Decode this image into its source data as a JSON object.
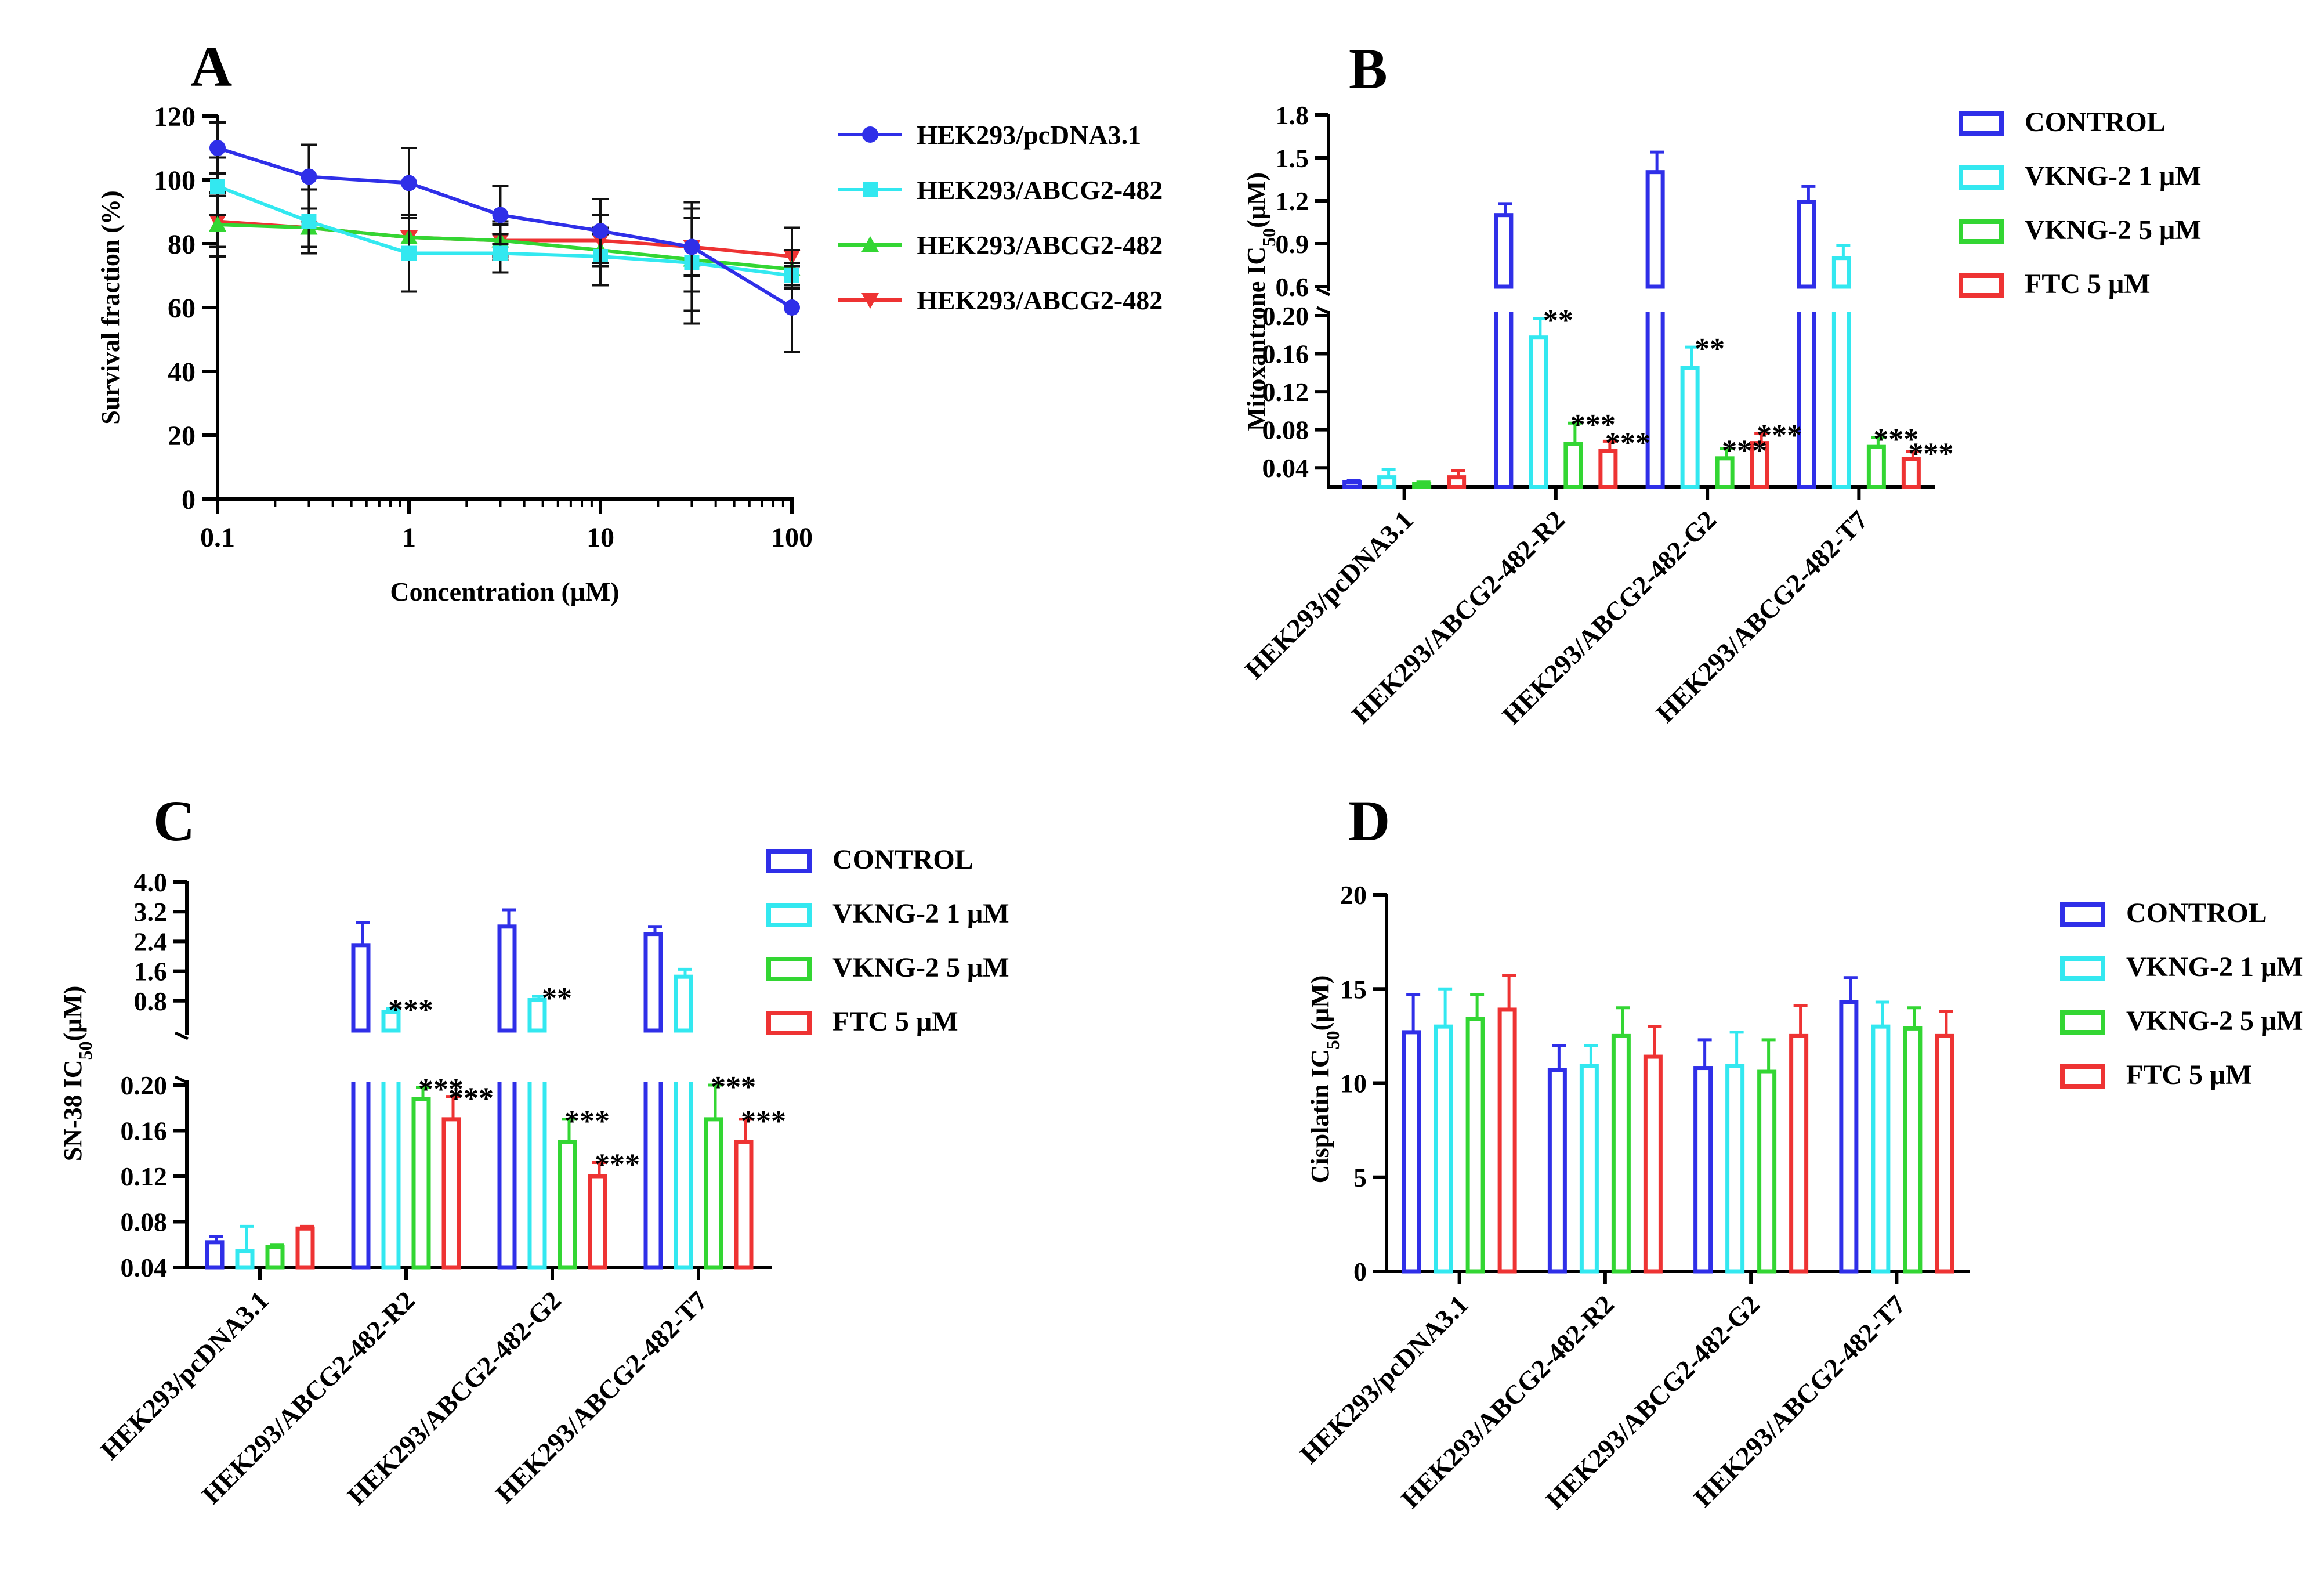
{
  "colors": {
    "control": "#2f2fe8",
    "vkng1": "#33e8f0",
    "vkng5": "#33d633",
    "ftc": "#ee3333",
    "pcdna": "#2f2fe8",
    "r2": "#33e8f0",
    "g2": "#33d633",
    "t7": "#ee3333"
  },
  "bar_legend": [
    "CONTROL",
    "VKNG-2 1 μM",
    "VKNG-2 5 μM",
    "FTC 5 μM"
  ],
  "chart_data": [
    {
      "panel": "A",
      "type": "line",
      "xlabel": "Concentration (μM)",
      "ylabel": "Survival fraction (%)",
      "xscale": "log",
      "xlim": [
        0.1,
        100
      ],
      "ylim": [
        0,
        120
      ],
      "xticks": [
        "0.1",
        "1",
        "10",
        "100"
      ],
      "yticks": [
        "0",
        "20",
        "40",
        "60",
        "80",
        "100",
        "120"
      ],
      "legend_position": "right",
      "x": [
        0.1,
        0.3,
        1,
        3,
        10,
        30,
        100
      ],
      "series": [
        {
          "name": "HEK293/pcDNA3.1",
          "marker": "circle",
          "values": [
            110,
            101,
            99,
            89,
            84,
            79,
            60
          ],
          "errors": [
            8,
            10,
            11,
            9,
            10,
            14,
            14
          ]
        },
        {
          "name": "HEK293/ABCG2-482",
          "marker": "square",
          "values": [
            98,
            87,
            77,
            77,
            76,
            74,
            70
          ],
          "errors": [
            9,
            10,
            12,
            6,
            9,
            19,
            3
          ]
        },
        {
          "name": "HEK293/ABCG2-482",
          "marker": "triangle-up",
          "values": [
            86,
            85,
            82,
            81,
            78,
            75,
            72
          ],
          "errors": [
            10,
            6,
            7,
            5,
            5,
            16,
            6
          ]
        },
        {
          "name": "HEK293/ABCG2-482",
          "marker": "triangle-down",
          "values": [
            87,
            85,
            82,
            81,
            81,
            79,
            76
          ],
          "errors": [
            8,
            6,
            7,
            6,
            8,
            9,
            9
          ]
        }
      ]
    },
    {
      "panel": "B",
      "type": "bar",
      "ylabel_main": "Mitoxantrone IC",
      "ylabel_sub": "50",
      "ylabel_tail": "(μM)",
      "broken_axis": true,
      "upper_ylim": [
        0.6,
        1.8
      ],
      "upper_ticks": [
        "0.6",
        "0.9",
        "1.2",
        "1.5",
        "1.8"
      ],
      "lower_ylim": [
        0.02,
        0.2
      ],
      "lower_ticks": [
        "0.04",
        "0.08",
        "0.12",
        "0.16",
        "0.20"
      ],
      "categories": [
        "HEK293/pcDNA3.1",
        "HEK293/ABCG2-482-R2",
        "HEK293/ABCG2-482-G2",
        "HEK293/ABCG2-482-T7"
      ],
      "series": [
        {
          "name": "CONTROL",
          "values": [
            0.025,
            1.1,
            1.4,
            1.19
          ],
          "errors": [
            0.002,
            0.08,
            0.14,
            0.11
          ]
        },
        {
          "name": "VKNG-2 1 μM",
          "values": [
            0.03,
            0.177,
            0.145,
            0.8
          ],
          "errors": [
            0.008,
            0.02,
            0.022,
            0.09
          ]
        },
        {
          "name": "VKNG-2 5 μM",
          "values": [
            0.023,
            0.065,
            0.05,
            0.062
          ],
          "errors": [
            0.002,
            0.022,
            0.01,
            0.01
          ]
        },
        {
          "name": "FTC 5 μM",
          "values": [
            0.03,
            0.058,
            0.066,
            0.049
          ],
          "errors": [
            0.007,
            0.01,
            0.01,
            0.008
          ]
        }
      ],
      "annotations": [
        {
          "category": 1,
          "series": 1,
          "text": "**"
        },
        {
          "category": 1,
          "series": 2,
          "text": "***"
        },
        {
          "category": 1,
          "series": 3,
          "text": "***"
        },
        {
          "category": 2,
          "series": 1,
          "text": "**"
        },
        {
          "category": 2,
          "series": 2,
          "text": "***"
        },
        {
          "category": 2,
          "series": 3,
          "text": "***"
        },
        {
          "category": 3,
          "series": 2,
          "text": "***"
        },
        {
          "category": 3,
          "series": 3,
          "text": "***"
        }
      ]
    },
    {
      "panel": "C",
      "type": "bar",
      "ylabel_main": "SN-38 IC",
      "ylabel_sub": "50",
      "ylabel_tail": "(μM)",
      "broken_axis": true,
      "upper_ylim": [
        0,
        4.0
      ],
      "upper_ticks": [
        "0.8",
        "1.6",
        "2.4",
        "3.2",
        "4.0"
      ],
      "lower_ylim": [
        0.04,
        0.2
      ],
      "lower_ticks": [
        "0.04",
        "0.08",
        "0.12",
        "0.16",
        "0.20"
      ],
      "categories": [
        "HEK293/pcDNA3.1",
        "HEK293/ABCG2-482-R2",
        "HEK293/ABCG2-482-G2",
        "HEK293/ABCG2-482-T7"
      ],
      "series": [
        {
          "name": "CONTROL",
          "values": [
            0.062,
            2.3,
            2.8,
            2.6
          ],
          "errors": [
            0.005,
            0.6,
            0.45,
            0.2
          ]
        },
        {
          "name": "VKNG-2 1 μM",
          "values": [
            0.054,
            0.5,
            0.82,
            1.45
          ],
          "errors": [
            0.022,
            0.1,
            0.1,
            0.2
          ]
        },
        {
          "name": "VKNG-2 5 μM",
          "values": [
            0.058,
            0.188,
            0.15,
            0.17
          ],
          "errors": [
            0.002,
            0.01,
            0.02,
            0.03
          ]
        },
        {
          "name": "FTC 5 μM",
          "values": [
            0.074,
            0.17,
            0.12,
            0.15
          ],
          "errors": [
            0.002,
            0.02,
            0.012,
            0.02
          ]
        }
      ],
      "annotations": [
        {
          "category": 1,
          "series": 1,
          "text": "***"
        },
        {
          "category": 1,
          "series": 2,
          "text": "***"
        },
        {
          "category": 1,
          "series": 3,
          "text": "***"
        },
        {
          "category": 2,
          "series": 1,
          "text": "**"
        },
        {
          "category": 2,
          "series": 2,
          "text": "***"
        },
        {
          "category": 2,
          "series": 3,
          "text": "***"
        },
        {
          "category": 3,
          "series": 2,
          "text": "***"
        },
        {
          "category": 3,
          "series": 3,
          "text": "***"
        }
      ]
    },
    {
      "panel": "D",
      "type": "bar",
      "ylabel_main": "Cisplatin IC",
      "ylabel_sub": "50",
      "ylabel_tail": "(μM)",
      "broken_axis": false,
      "ylim": [
        0,
        20
      ],
      "yticks": [
        "0",
        "5",
        "10",
        "15",
        "20"
      ],
      "categories": [
        "HEK293/pcDNA3.1",
        "HEK293/ABCG2-482-R2",
        "HEK293/ABCG2-482-G2",
        "HEK293/ABCG2-482-T7"
      ],
      "series": [
        {
          "name": "CONTROL",
          "values": [
            12.7,
            10.7,
            10.8,
            14.3
          ],
          "errors": [
            2.0,
            1.3,
            1.5,
            1.3
          ]
        },
        {
          "name": "VKNG-2 1 μM",
          "values": [
            13.0,
            10.9,
            10.9,
            13.0
          ],
          "errors": [
            2.0,
            1.1,
            1.8,
            1.3
          ]
        },
        {
          "name": "VKNG-2 5 μM",
          "values": [
            13.4,
            12.5,
            10.6,
            12.9
          ],
          "errors": [
            1.3,
            1.5,
            1.7,
            1.1
          ]
        },
        {
          "name": "FTC 5 μM",
          "values": [
            13.9,
            11.4,
            12.5,
            12.5
          ],
          "errors": [
            1.8,
            1.6,
            1.6,
            1.3
          ]
        }
      ],
      "annotations": []
    }
  ]
}
